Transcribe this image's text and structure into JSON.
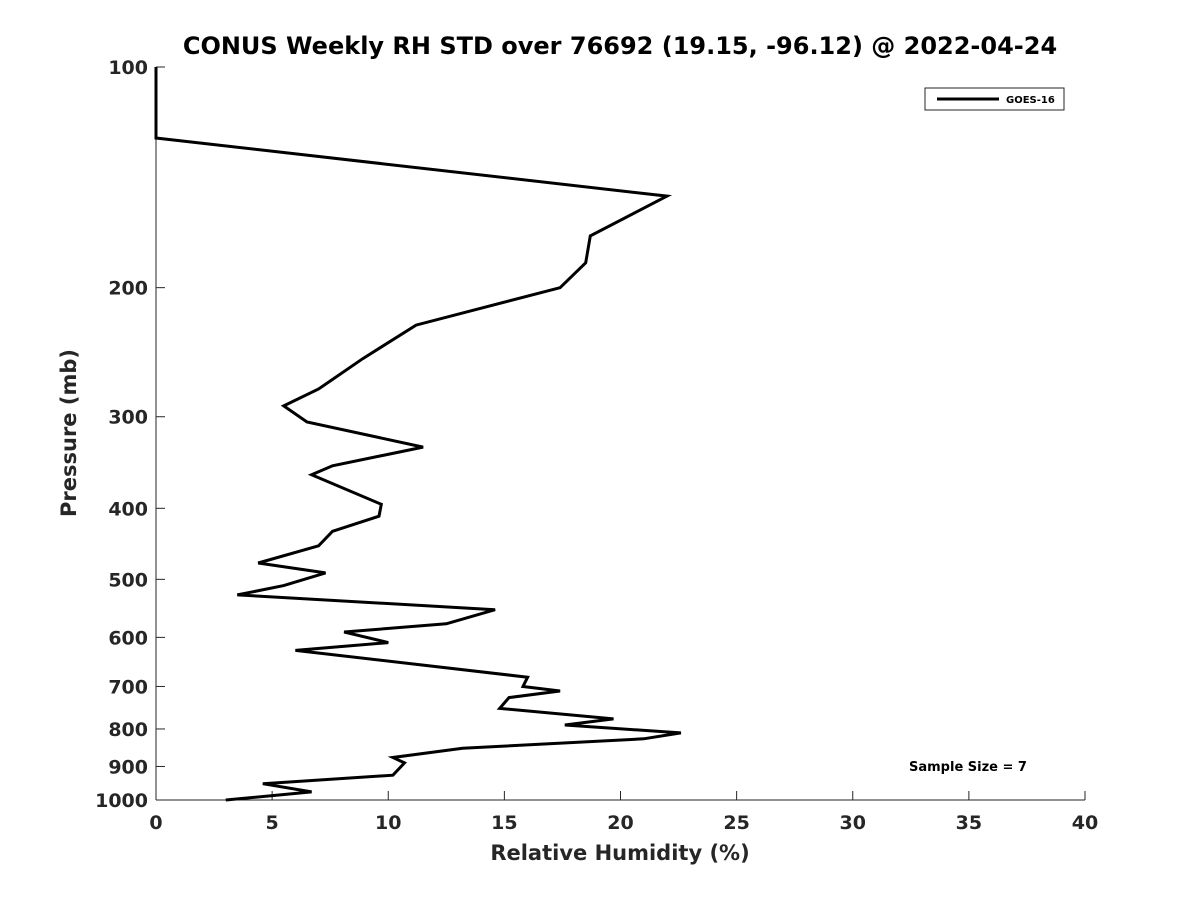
{
  "chart_data": {
    "type": "line",
    "title": "CONUS Weekly RH STD over 76692 (19.15, -96.12) @ 2022-04-24",
    "xlabel": "Relative Humidity (%)",
    "ylabel": "Pressure (mb)",
    "xlim": [
      0,
      40
    ],
    "ylim": [
      100,
      1000
    ],
    "y_scale": "log",
    "y_reversed": true,
    "xticks": [
      0,
      5,
      10,
      15,
      20,
      25,
      30,
      35,
      40
    ],
    "xtick_labels": [
      "0",
      "5",
      "10",
      "15",
      "20",
      "25",
      "30",
      "35",
      "40"
    ],
    "yticks": [
      100,
      200,
      300,
      400,
      500,
      600,
      700,
      800,
      900,
      1000
    ],
    "ytick_labels": [
      "100",
      "200",
      "300",
      "400",
      "500",
      "600",
      "700",
      "800",
      "900",
      "1000"
    ],
    "grid": false,
    "legend_position": "top-right",
    "annotation": "Sample Size = 7",
    "series": [
      {
        "name": "GOES-16",
        "color": "#000000",
        "x": [
          0,
          0,
          22,
          18.7,
          18.5,
          17.4,
          11.2,
          8.9,
          7,
          5.5,
          6.5,
          11.5,
          7.6,
          6.7,
          9.7,
          9.6,
          7.6,
          7,
          4.4,
          7.3,
          5.5,
          3.5,
          14.6,
          12.5,
          8.1,
          10,
          6,
          16,
          15.8,
          17.4,
          15.2,
          14.8,
          19.7,
          17.6,
          22.6,
          21,
          13.2,
          10.2,
          10.7,
          10.2,
          4.6,
          6.7,
          3
        ],
        "y": [
          100,
          125,
          150,
          170,
          185,
          200,
          225,
          250,
          275,
          290,
          305,
          330,
          350,
          360,
          395,
          410,
          430,
          450,
          475,
          490,
          510,
          525,
          550,
          575,
          590,
          610,
          625,
          680,
          700,
          710,
          725,
          750,
          775,
          790,
          810,
          825,
          850,
          875,
          890,
          925,
          950,
          975,
          1000
        ]
      }
    ]
  }
}
